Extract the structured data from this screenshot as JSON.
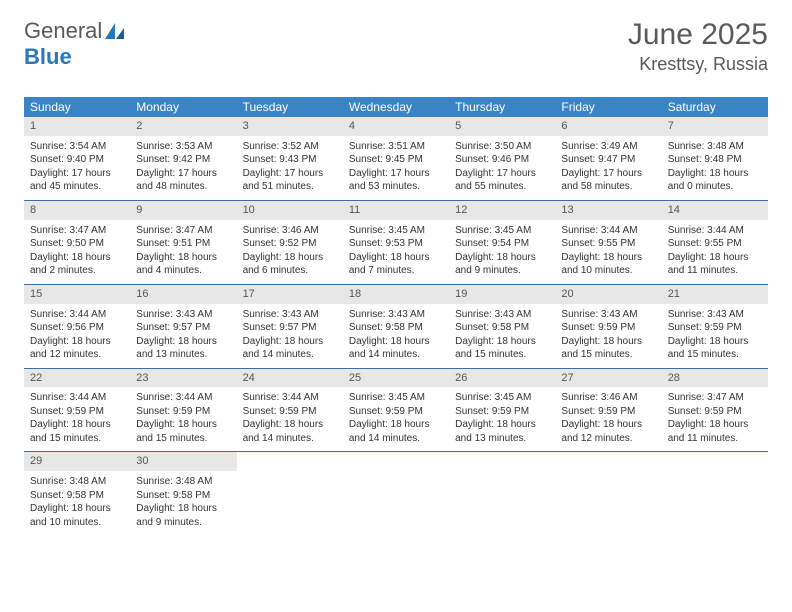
{
  "logo": {
    "text1": "General",
    "text2": "Blue"
  },
  "title": {
    "month": "June 2025",
    "location": "Kresttsy, Russia"
  },
  "colors": {
    "header_bg": "#3a84c5",
    "header_text": "#ffffff",
    "daynum_bg": "#e7e7e7",
    "week_border": "#3a6ea5",
    "logo_blue": "#2a77bb",
    "text": "#333333"
  },
  "dayNames": [
    "Sunday",
    "Monday",
    "Tuesday",
    "Wednesday",
    "Thursday",
    "Friday",
    "Saturday"
  ],
  "weeks": [
    [
      {
        "n": "1",
        "sr": "Sunrise: 3:54 AM",
        "ss": "Sunset: 9:40 PM",
        "d1": "Daylight: 17 hours",
        "d2": "and 45 minutes."
      },
      {
        "n": "2",
        "sr": "Sunrise: 3:53 AM",
        "ss": "Sunset: 9:42 PM",
        "d1": "Daylight: 17 hours",
        "d2": "and 48 minutes."
      },
      {
        "n": "3",
        "sr": "Sunrise: 3:52 AM",
        "ss": "Sunset: 9:43 PM",
        "d1": "Daylight: 17 hours",
        "d2": "and 51 minutes."
      },
      {
        "n": "4",
        "sr": "Sunrise: 3:51 AM",
        "ss": "Sunset: 9:45 PM",
        "d1": "Daylight: 17 hours",
        "d2": "and 53 minutes."
      },
      {
        "n": "5",
        "sr": "Sunrise: 3:50 AM",
        "ss": "Sunset: 9:46 PM",
        "d1": "Daylight: 17 hours",
        "d2": "and 55 minutes."
      },
      {
        "n": "6",
        "sr": "Sunrise: 3:49 AM",
        "ss": "Sunset: 9:47 PM",
        "d1": "Daylight: 17 hours",
        "d2": "and 58 minutes."
      },
      {
        "n": "7",
        "sr": "Sunrise: 3:48 AM",
        "ss": "Sunset: 9:48 PM",
        "d1": "Daylight: 18 hours",
        "d2": "and 0 minutes."
      }
    ],
    [
      {
        "n": "8",
        "sr": "Sunrise: 3:47 AM",
        "ss": "Sunset: 9:50 PM",
        "d1": "Daylight: 18 hours",
        "d2": "and 2 minutes."
      },
      {
        "n": "9",
        "sr": "Sunrise: 3:47 AM",
        "ss": "Sunset: 9:51 PM",
        "d1": "Daylight: 18 hours",
        "d2": "and 4 minutes."
      },
      {
        "n": "10",
        "sr": "Sunrise: 3:46 AM",
        "ss": "Sunset: 9:52 PM",
        "d1": "Daylight: 18 hours",
        "d2": "and 6 minutes."
      },
      {
        "n": "11",
        "sr": "Sunrise: 3:45 AM",
        "ss": "Sunset: 9:53 PM",
        "d1": "Daylight: 18 hours",
        "d2": "and 7 minutes."
      },
      {
        "n": "12",
        "sr": "Sunrise: 3:45 AM",
        "ss": "Sunset: 9:54 PM",
        "d1": "Daylight: 18 hours",
        "d2": "and 9 minutes."
      },
      {
        "n": "13",
        "sr": "Sunrise: 3:44 AM",
        "ss": "Sunset: 9:55 PM",
        "d1": "Daylight: 18 hours",
        "d2": "and 10 minutes."
      },
      {
        "n": "14",
        "sr": "Sunrise: 3:44 AM",
        "ss": "Sunset: 9:55 PM",
        "d1": "Daylight: 18 hours",
        "d2": "and 11 minutes."
      }
    ],
    [
      {
        "n": "15",
        "sr": "Sunrise: 3:44 AM",
        "ss": "Sunset: 9:56 PM",
        "d1": "Daylight: 18 hours",
        "d2": "and 12 minutes."
      },
      {
        "n": "16",
        "sr": "Sunrise: 3:43 AM",
        "ss": "Sunset: 9:57 PM",
        "d1": "Daylight: 18 hours",
        "d2": "and 13 minutes."
      },
      {
        "n": "17",
        "sr": "Sunrise: 3:43 AM",
        "ss": "Sunset: 9:57 PM",
        "d1": "Daylight: 18 hours",
        "d2": "and 14 minutes."
      },
      {
        "n": "18",
        "sr": "Sunrise: 3:43 AM",
        "ss": "Sunset: 9:58 PM",
        "d1": "Daylight: 18 hours",
        "d2": "and 14 minutes."
      },
      {
        "n": "19",
        "sr": "Sunrise: 3:43 AM",
        "ss": "Sunset: 9:58 PM",
        "d1": "Daylight: 18 hours",
        "d2": "and 15 minutes."
      },
      {
        "n": "20",
        "sr": "Sunrise: 3:43 AM",
        "ss": "Sunset: 9:59 PM",
        "d1": "Daylight: 18 hours",
        "d2": "and 15 minutes."
      },
      {
        "n": "21",
        "sr": "Sunrise: 3:43 AM",
        "ss": "Sunset: 9:59 PM",
        "d1": "Daylight: 18 hours",
        "d2": "and 15 minutes."
      }
    ],
    [
      {
        "n": "22",
        "sr": "Sunrise: 3:44 AM",
        "ss": "Sunset: 9:59 PM",
        "d1": "Daylight: 18 hours",
        "d2": "and 15 minutes."
      },
      {
        "n": "23",
        "sr": "Sunrise: 3:44 AM",
        "ss": "Sunset: 9:59 PM",
        "d1": "Daylight: 18 hours",
        "d2": "and 15 minutes."
      },
      {
        "n": "24",
        "sr": "Sunrise: 3:44 AM",
        "ss": "Sunset: 9:59 PM",
        "d1": "Daylight: 18 hours",
        "d2": "and 14 minutes."
      },
      {
        "n": "25",
        "sr": "Sunrise: 3:45 AM",
        "ss": "Sunset: 9:59 PM",
        "d1": "Daylight: 18 hours",
        "d2": "and 14 minutes."
      },
      {
        "n": "26",
        "sr": "Sunrise: 3:45 AM",
        "ss": "Sunset: 9:59 PM",
        "d1": "Daylight: 18 hours",
        "d2": "and 13 minutes."
      },
      {
        "n": "27",
        "sr": "Sunrise: 3:46 AM",
        "ss": "Sunset: 9:59 PM",
        "d1": "Daylight: 18 hours",
        "d2": "and 12 minutes."
      },
      {
        "n": "28",
        "sr": "Sunrise: 3:47 AM",
        "ss": "Sunset: 9:59 PM",
        "d1": "Daylight: 18 hours",
        "d2": "and 11 minutes."
      }
    ],
    [
      {
        "n": "29",
        "sr": "Sunrise: 3:48 AM",
        "ss": "Sunset: 9:58 PM",
        "d1": "Daylight: 18 hours",
        "d2": "and 10 minutes."
      },
      {
        "n": "30",
        "sr": "Sunrise: 3:48 AM",
        "ss": "Sunset: 9:58 PM",
        "d1": "Daylight: 18 hours",
        "d2": "and 9 minutes."
      },
      null,
      null,
      null,
      null,
      null
    ]
  ]
}
